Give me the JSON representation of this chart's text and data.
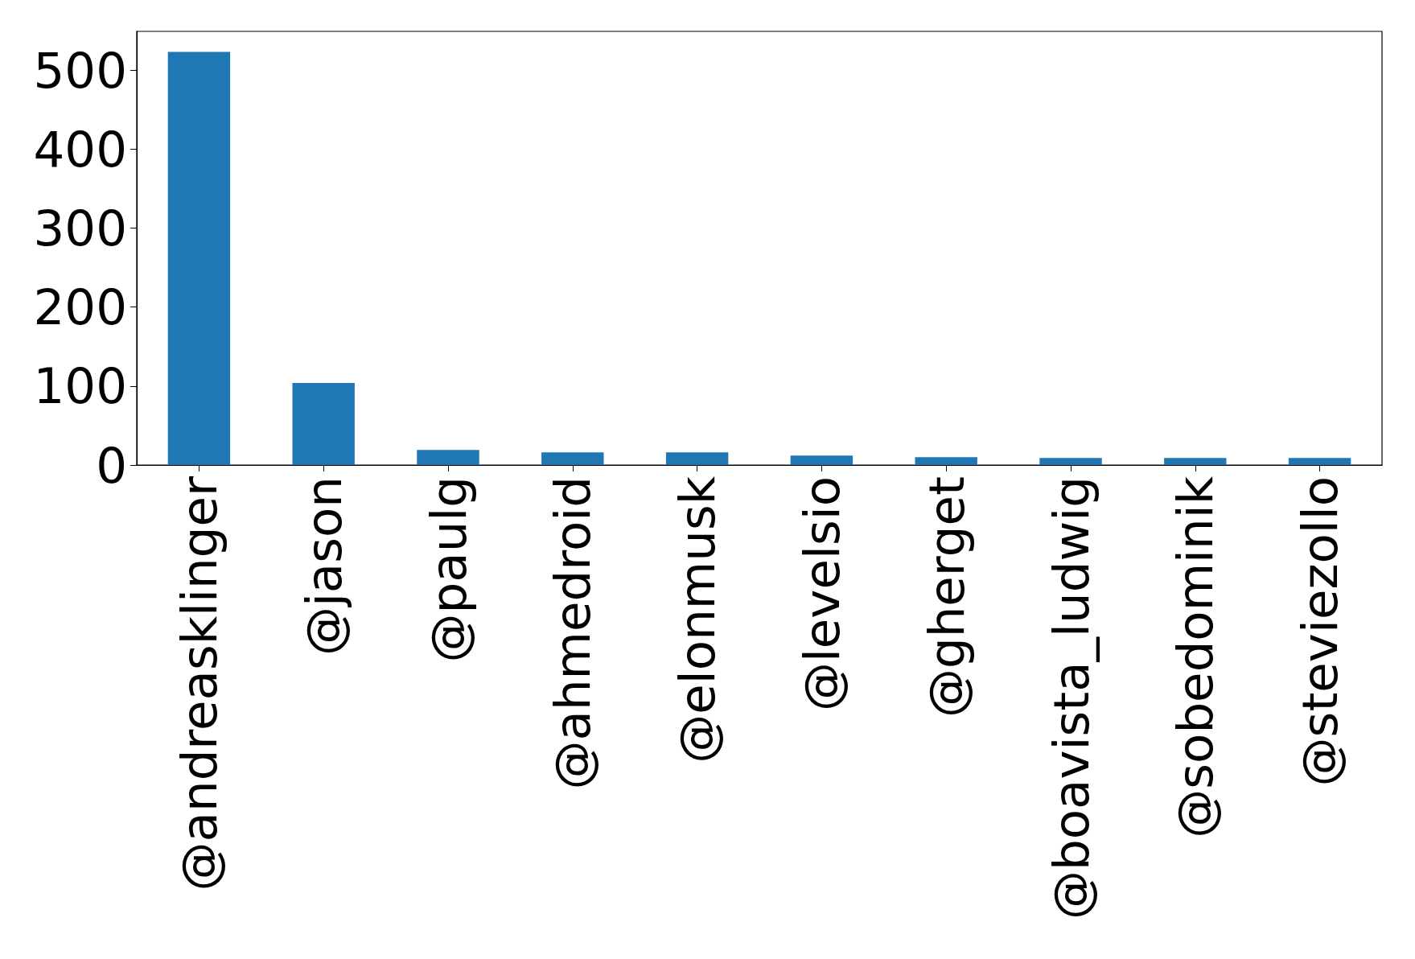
{
  "chart_data": {
    "type": "bar",
    "categories": [
      "@andreasklinger",
      "@jason",
      "@paulg",
      "@ahmedroid",
      "@elonmusk",
      "@levelsio",
      "@gherget",
      "@boavista_ludwig",
      "@sobedominik",
      "@steviezollo"
    ],
    "values": [
      523,
      104,
      19,
      16,
      16,
      12,
      10,
      9,
      9,
      9
    ],
    "color": "#1f77b4",
    "ylim": [
      0,
      549
    ],
    "yticks": [
      0,
      100,
      200,
      300,
      400,
      500
    ],
    "grid": false
  }
}
